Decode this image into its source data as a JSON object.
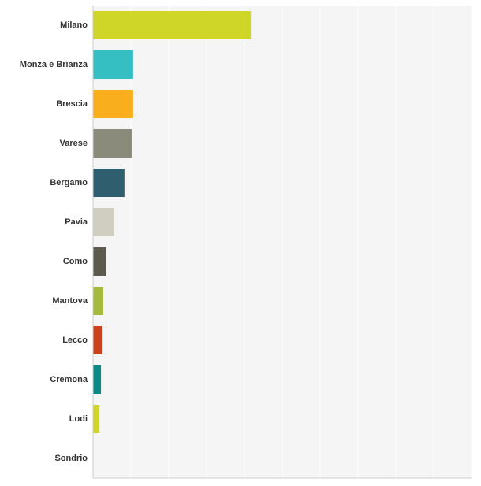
{
  "chart_data": {
    "type": "bar",
    "orientation": "horizontal",
    "categories": [
      "Milano",
      "Monza e Brianza",
      "Brescia",
      "Varese",
      "Bergamo",
      "Pavia",
      "Como",
      "Mantova",
      "Lecco",
      "Cremona",
      "Lodi",
      "Sondrio"
    ],
    "values": [
      41.7,
      10.6,
      10.6,
      10.2,
      8.3,
      5.6,
      3.5,
      2.7,
      2.3,
      2.1,
      1.7,
      0
    ],
    "colors": [
      "#d0d628",
      "#35bfc2",
      "#f9ae1e",
      "#8b8b7b",
      "#2f5f6e",
      "#d0cec0",
      "#5b5a4c",
      "#a5b93c",
      "#c9421d",
      "#0b8a86",
      "#d0d628",
      "#cccccc"
    ],
    "xlim": [
      0,
      100
    ],
    "xticks": [
      0,
      10,
      20,
      30,
      40,
      50,
      60,
      70,
      80,
      90,
      100
    ],
    "grid": true
  }
}
